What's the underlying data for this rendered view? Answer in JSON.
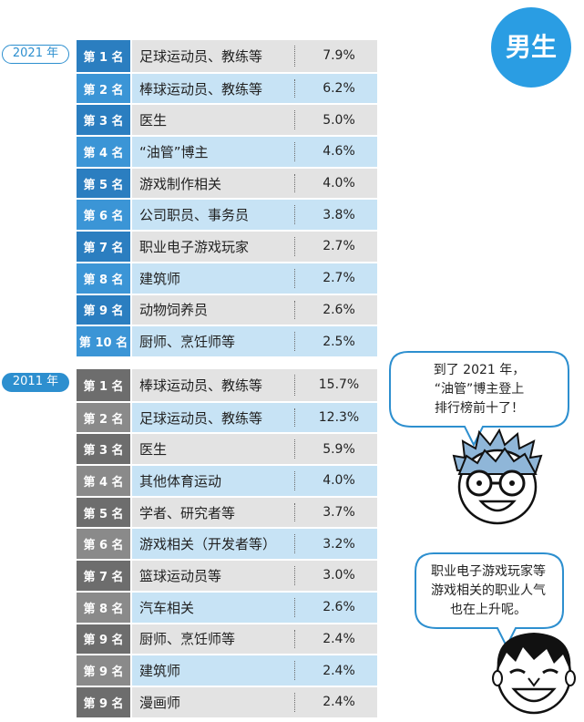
{
  "badge": "男生",
  "sections": [
    {
      "year": "2021 年",
      "rows": [
        {
          "rank": "第 1 名",
          "job": "足球运动员、教练等",
          "pct": "7.9%"
        },
        {
          "rank": "第 2 名",
          "job": "棒球运动员、教练等",
          "pct": "6.2%"
        },
        {
          "rank": "第 3 名",
          "job": "医生",
          "pct": "5.0%"
        },
        {
          "rank": "第 4 名",
          "job": "“油管”博主",
          "pct": "4.6%"
        },
        {
          "rank": "第 5 名",
          "job": "游戏制作相关",
          "pct": "4.0%"
        },
        {
          "rank": "第 6 名",
          "job": "公司职员、事务员",
          "pct": "3.8%"
        },
        {
          "rank": "第 7 名",
          "job": "职业电子游戏玩家",
          "pct": "2.7%"
        },
        {
          "rank": "第 8 名",
          "job": "建筑师",
          "pct": "2.7%"
        },
        {
          "rank": "第 9 名",
          "job": "动物饲养员",
          "pct": "2.6%"
        },
        {
          "rank": "第 10 名",
          "job": "厨师、烹饪师等",
          "pct": "2.5%"
        }
      ]
    },
    {
      "year": "2011 年",
      "rows": [
        {
          "rank": "第 1 名",
          "job": "棒球运动员、教练等",
          "pct": "15.7%"
        },
        {
          "rank": "第 2 名",
          "job": "足球运动员、教练等",
          "pct": "12.3%"
        },
        {
          "rank": "第 3 名",
          "job": "医生",
          "pct": "5.9%"
        },
        {
          "rank": "第 4 名",
          "job": "其他体育运动",
          "pct": "4.0%"
        },
        {
          "rank": "第 5 名",
          "job": "学者、研究者等",
          "pct": "3.7%"
        },
        {
          "rank": "第 6 名",
          "job": "游戏相关（开发者等）",
          "pct": "3.2%"
        },
        {
          "rank": "第 7 名",
          "job": "篮球运动员等",
          "pct": "3.0%"
        },
        {
          "rank": "第 8 名",
          "job": "汽车相关",
          "pct": "2.6%"
        },
        {
          "rank": "第 9 名",
          "job": "厨师、烹饪师等",
          "pct": "2.4%"
        },
        {
          "rank": "第 9 名",
          "job": "建筑师",
          "pct": "2.4%"
        },
        {
          "rank": "第 9 名",
          "job": "漫画师",
          "pct": "2.4%"
        }
      ]
    }
  ],
  "bubbles": [
    {
      "lines": [
        "到了 2021 年，",
        "“油管”博主登上",
        "排行榜前十了！"
      ]
    },
    {
      "lines": [
        "职业电子游戏玩家等",
        "游戏相关的职业人气",
        "也在上升呢。"
      ]
    }
  ]
}
